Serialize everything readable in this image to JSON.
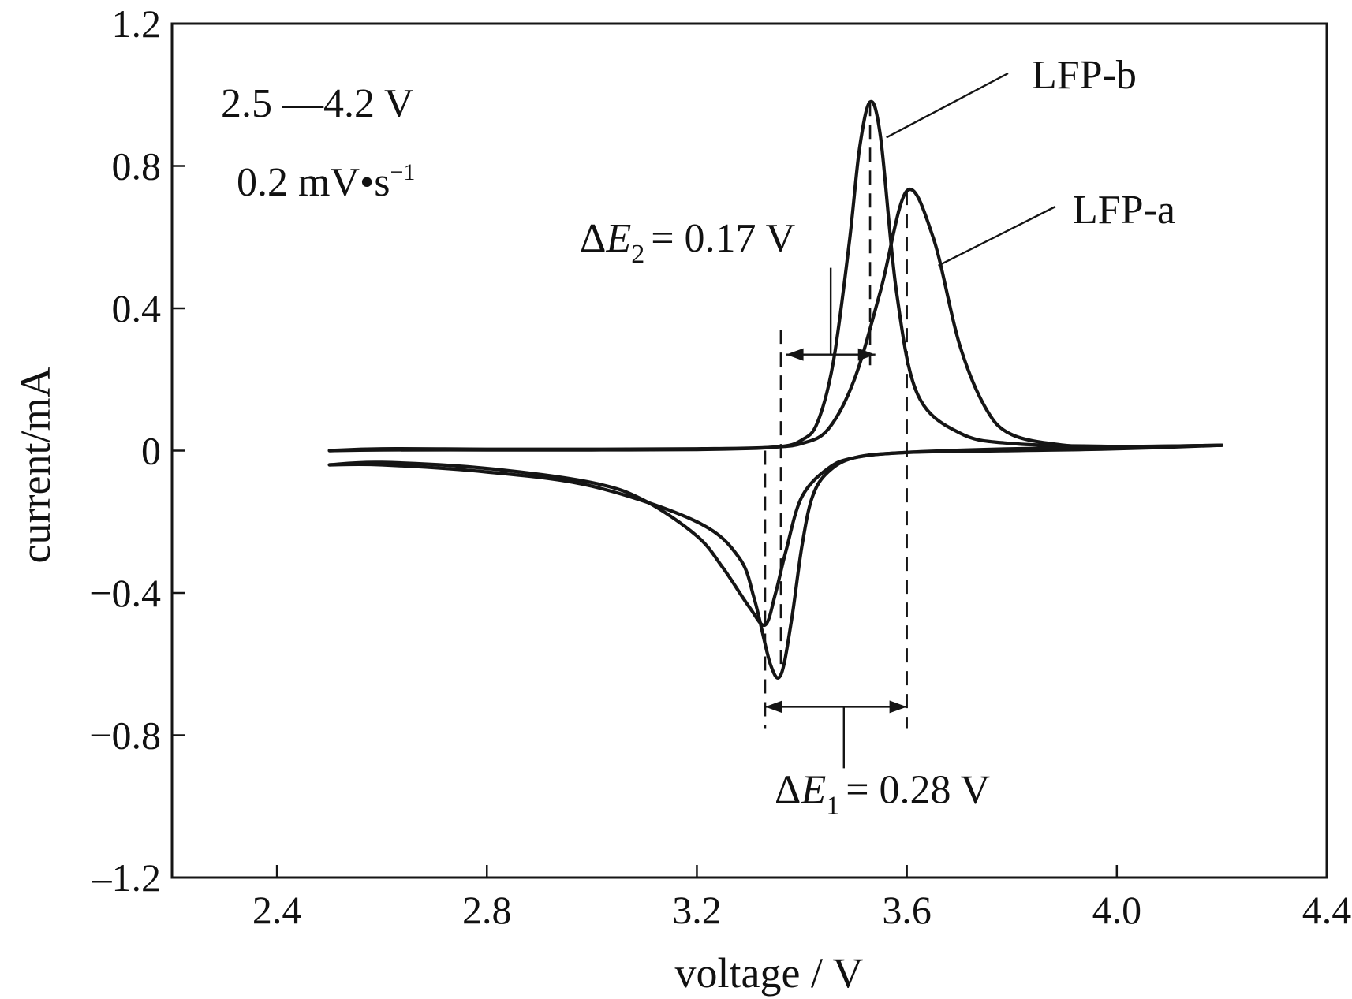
{
  "chart_data": {
    "type": "line",
    "xlabel": "voltage / V",
    "ylabel": "current/mA",
    "xlim": [
      2.2,
      4.4
    ],
    "ylim": [
      -1.2,
      1.2
    ],
    "x_ticks": [
      2.4,
      2.8,
      3.2,
      3.6,
      4.0,
      4.4
    ],
    "x_tick_labels": [
      "2.4",
      "2.8",
      "3.2",
      "3.6",
      "4.0",
      "4.4"
    ],
    "y_ticks": [
      1.2,
      0.8,
      0.4,
      0,
      -0.4,
      -0.8,
      -1.2
    ],
    "y_tick_labels": [
      "1.2",
      "0.8",
      "0.4",
      "0",
      "−0.4",
      "−0.8",
      "–1.2"
    ],
    "grid": false,
    "legend": "none",
    "conditions": [
      "2.5 —4.2 V",
      "0.2 mV•s"
    ],
    "conditions_exponent": "−1",
    "series": [
      {
        "name": "LFP-a",
        "anodic": {
          "x": [
            2.5,
            2.6,
            2.8,
            3.0,
            3.2,
            3.3,
            3.35,
            3.4,
            3.45,
            3.5,
            3.55,
            3.6,
            3.65,
            3.7,
            3.75,
            3.8,
            3.9,
            4.0,
            4.1,
            4.2
          ],
          "y": [
            0.0,
            0.002,
            0.002,
            0.002,
            0.003,
            0.006,
            0.01,
            0.02,
            0.06,
            0.2,
            0.45,
            0.73,
            0.6,
            0.3,
            0.12,
            0.045,
            0.015,
            0.01,
            0.012,
            0.015
          ]
        },
        "cathodic": {
          "x": [
            4.2,
            4.0,
            3.8,
            3.6,
            3.5,
            3.45,
            3.4,
            3.37,
            3.35,
            3.33,
            3.3,
            3.25,
            3.2,
            3.1,
            3.0,
            2.8,
            2.6,
            2.5
          ],
          "y": [
            0.015,
            0.005,
            0.0,
            -0.005,
            -0.02,
            -0.05,
            -0.13,
            -0.28,
            -0.4,
            -0.49,
            -0.44,
            -0.33,
            -0.24,
            -0.14,
            -0.09,
            -0.05,
            -0.033,
            -0.04
          ]
        }
      },
      {
        "name": "LFP-b",
        "anodic": {
          "x": [
            2.5,
            2.6,
            2.8,
            3.0,
            3.2,
            3.35,
            3.4,
            3.43,
            3.46,
            3.49,
            3.51,
            3.53,
            3.55,
            3.58,
            3.62,
            3.7,
            3.8,
            4.0,
            4.2
          ],
          "y": [
            0.0,
            0.005,
            0.004,
            0.004,
            0.005,
            0.01,
            0.03,
            0.08,
            0.25,
            0.58,
            0.85,
            0.98,
            0.88,
            0.45,
            0.16,
            0.05,
            0.02,
            0.012,
            0.015
          ]
        },
        "cathodic": {
          "x": [
            4.2,
            3.8,
            3.6,
            3.5,
            3.45,
            3.42,
            3.4,
            3.38,
            3.36,
            3.34,
            3.31,
            3.28,
            3.2,
            3.0,
            2.8,
            2.6,
            2.5
          ],
          "y": [
            0.015,
            0.005,
            -0.005,
            -0.02,
            -0.06,
            -0.13,
            -0.27,
            -0.48,
            -0.63,
            -0.6,
            -0.42,
            -0.3,
            -0.2,
            -0.1,
            -0.06,
            -0.04,
            -0.04
          ]
        }
      }
    ],
    "annotations": [
      {
        "text_delta": "ΔE",
        "subscript": "2",
        "value": "= 0.17 V",
        "from": 3.37,
        "to": 3.54,
        "y": 0.27
      },
      {
        "text_delta": "ΔE",
        "subscript": "1",
        "value": "= 0.28 V",
        "from": 3.33,
        "to": 3.6,
        "y": -0.72
      }
    ]
  }
}
